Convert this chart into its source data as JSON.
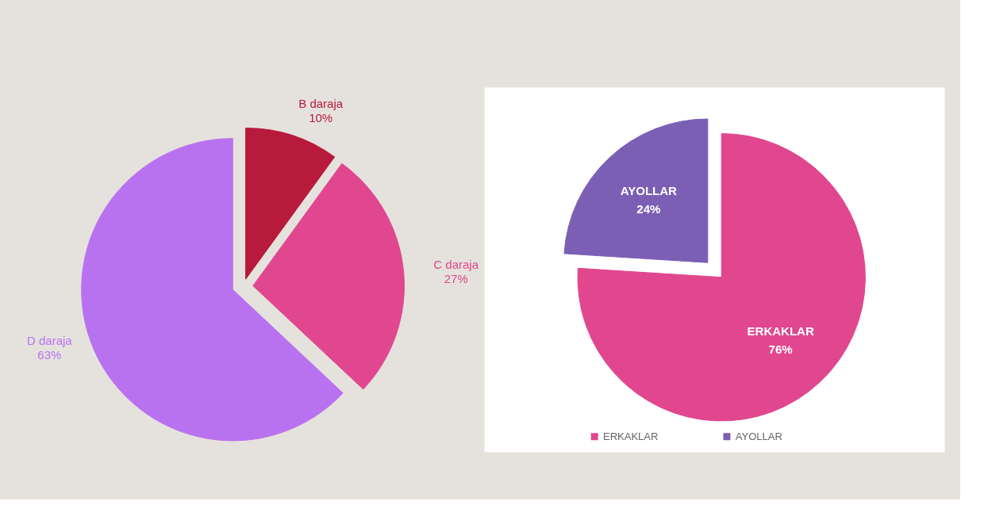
{
  "chart_data": [
    {
      "type": "pie",
      "categories": [
        "B daraja",
        "C daraja",
        "D daraja"
      ],
      "values": [
        10,
        27,
        63
      ],
      "value_labels": [
        "10%",
        "27%",
        "63%"
      ],
      "colors": [
        "#b81a3c",
        "#e0478f",
        "#b872f0"
      ]
    },
    {
      "type": "pie",
      "categories": [
        "ERKAKLAR",
        "AYOLLAR"
      ],
      "values": [
        76,
        24
      ],
      "value_labels": [
        "76%",
        "24%"
      ],
      "colors": [
        "#e0478f",
        "#7b5fb5"
      ],
      "legend": "bottom"
    }
  ]
}
